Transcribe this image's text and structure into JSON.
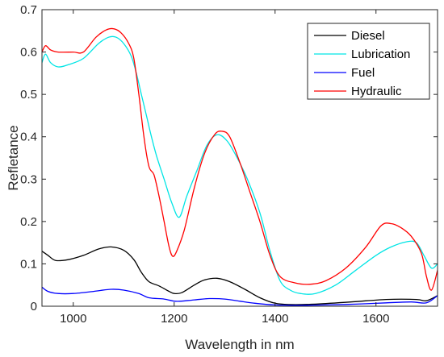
{
  "chart_data": {
    "type": "line",
    "xlabel": "Wavelength in nm",
    "ylabel": "Refletance",
    "xlim": [
      938,
      1722
    ],
    "ylim": [
      0,
      0.7
    ],
    "x_ticks": [
      1000,
      1200,
      1400,
      1600
    ],
    "y_ticks": [
      0,
      0.1,
      0.2,
      0.3,
      0.4,
      0.5,
      0.6,
      0.7
    ],
    "x_tick_labels": [
      "1000",
      "1200",
      "1400",
      "1600"
    ],
    "y_tick_labels": [
      "0",
      "0.1",
      "0.2",
      "0.3",
      "0.4",
      "0.5",
      "0.6",
      "0.7"
    ],
    "grid": false,
    "legend_position": "top-right",
    "series": [
      {
        "name": "Diesel",
        "color": "#000000",
        "x": [
          938,
          950,
          965,
          990,
          1020,
          1050,
          1075,
          1100,
          1120,
          1135,
          1150,
          1170,
          1190,
          1200,
          1215,
          1240,
          1260,
          1285,
          1310,
          1340,
          1370,
          1400,
          1430,
          1480,
          1550,
          1620,
          1680,
          1700,
          1722
        ],
        "y": [
          0.13,
          0.12,
          0.108,
          0.11,
          0.12,
          0.135,
          0.14,
          0.132,
          0.11,
          0.08,
          0.058,
          0.048,
          0.035,
          0.03,
          0.032,
          0.05,
          0.062,
          0.066,
          0.058,
          0.04,
          0.02,
          0.007,
          0.004,
          0.005,
          0.01,
          0.016,
          0.016,
          0.013,
          0.025
        ]
      },
      {
        "name": "Lubrication",
        "color": "#00e5e5",
        "x": [
          938,
          945,
          955,
          970,
          990,
          1020,
          1050,
          1070,
          1085,
          1100,
          1115,
          1125,
          1135,
          1145,
          1155,
          1165,
          1180,
          1195,
          1210,
          1225,
          1245,
          1265,
          1285,
          1305,
          1325,
          1345,
          1370,
          1390,
          1410,
          1430,
          1450,
          1480,
          1520,
          1560,
          1600,
          1630,
          1660,
          1680,
          1695,
          1710,
          1722
        ],
        "y": [
          0.575,
          0.595,
          0.575,
          0.565,
          0.57,
          0.585,
          0.62,
          0.635,
          0.635,
          0.62,
          0.59,
          0.55,
          0.5,
          0.45,
          0.4,
          0.355,
          0.3,
          0.245,
          0.21,
          0.26,
          0.32,
          0.38,
          0.405,
          0.39,
          0.35,
          0.3,
          0.22,
          0.13,
          0.06,
          0.038,
          0.03,
          0.03,
          0.05,
          0.085,
          0.12,
          0.14,
          0.152,
          0.15,
          0.12,
          0.09,
          0.1
        ]
      },
      {
        "name": "Fuel",
        "color": "#0000ff",
        "x": [
          938,
          950,
          970,
          1000,
          1040,
          1075,
          1100,
          1130,
          1150,
          1180,
          1200,
          1215,
          1240,
          1270,
          1300,
          1330,
          1360,
          1400,
          1450,
          1500,
          1560,
          1620,
          1670,
          1700,
          1722
        ],
        "y": [
          0.045,
          0.035,
          0.03,
          0.03,
          0.035,
          0.04,
          0.038,
          0.03,
          0.02,
          0.017,
          0.012,
          0.012,
          0.015,
          0.018,
          0.017,
          0.012,
          0.007,
          0.003,
          0.002,
          0.003,
          0.005,
          0.008,
          0.01,
          0.008,
          0.025
        ]
      },
      {
        "name": "Hydraulic",
        "color": "#ff0000",
        "x": [
          938,
          945,
          955,
          970,
          1000,
          1020,
          1045,
          1065,
          1080,
          1095,
          1110,
          1120,
          1130,
          1140,
          1150,
          1160,
          1170,
          1180,
          1190,
          1197,
          1205,
          1220,
          1240,
          1260,
          1280,
          1295,
          1310,
          1330,
          1350,
          1370,
          1390,
          1410,
          1440,
          1470,
          1500,
          1540,
          1580,
          1610,
          1630,
          1650,
          1670,
          1690,
          1700,
          1710,
          1722
        ],
        "y": [
          0.6,
          0.615,
          0.605,
          0.6,
          0.6,
          0.6,
          0.635,
          0.652,
          0.655,
          0.645,
          0.62,
          0.585,
          0.5,
          0.4,
          0.33,
          0.31,
          0.26,
          0.2,
          0.14,
          0.118,
          0.13,
          0.18,
          0.28,
          0.36,
          0.405,
          0.413,
          0.4,
          0.34,
          0.27,
          0.2,
          0.12,
          0.07,
          0.055,
          0.052,
          0.06,
          0.09,
          0.14,
          0.19,
          0.195,
          0.185,
          0.165,
          0.125,
          0.07,
          0.038,
          0.085
        ]
      }
    ]
  }
}
